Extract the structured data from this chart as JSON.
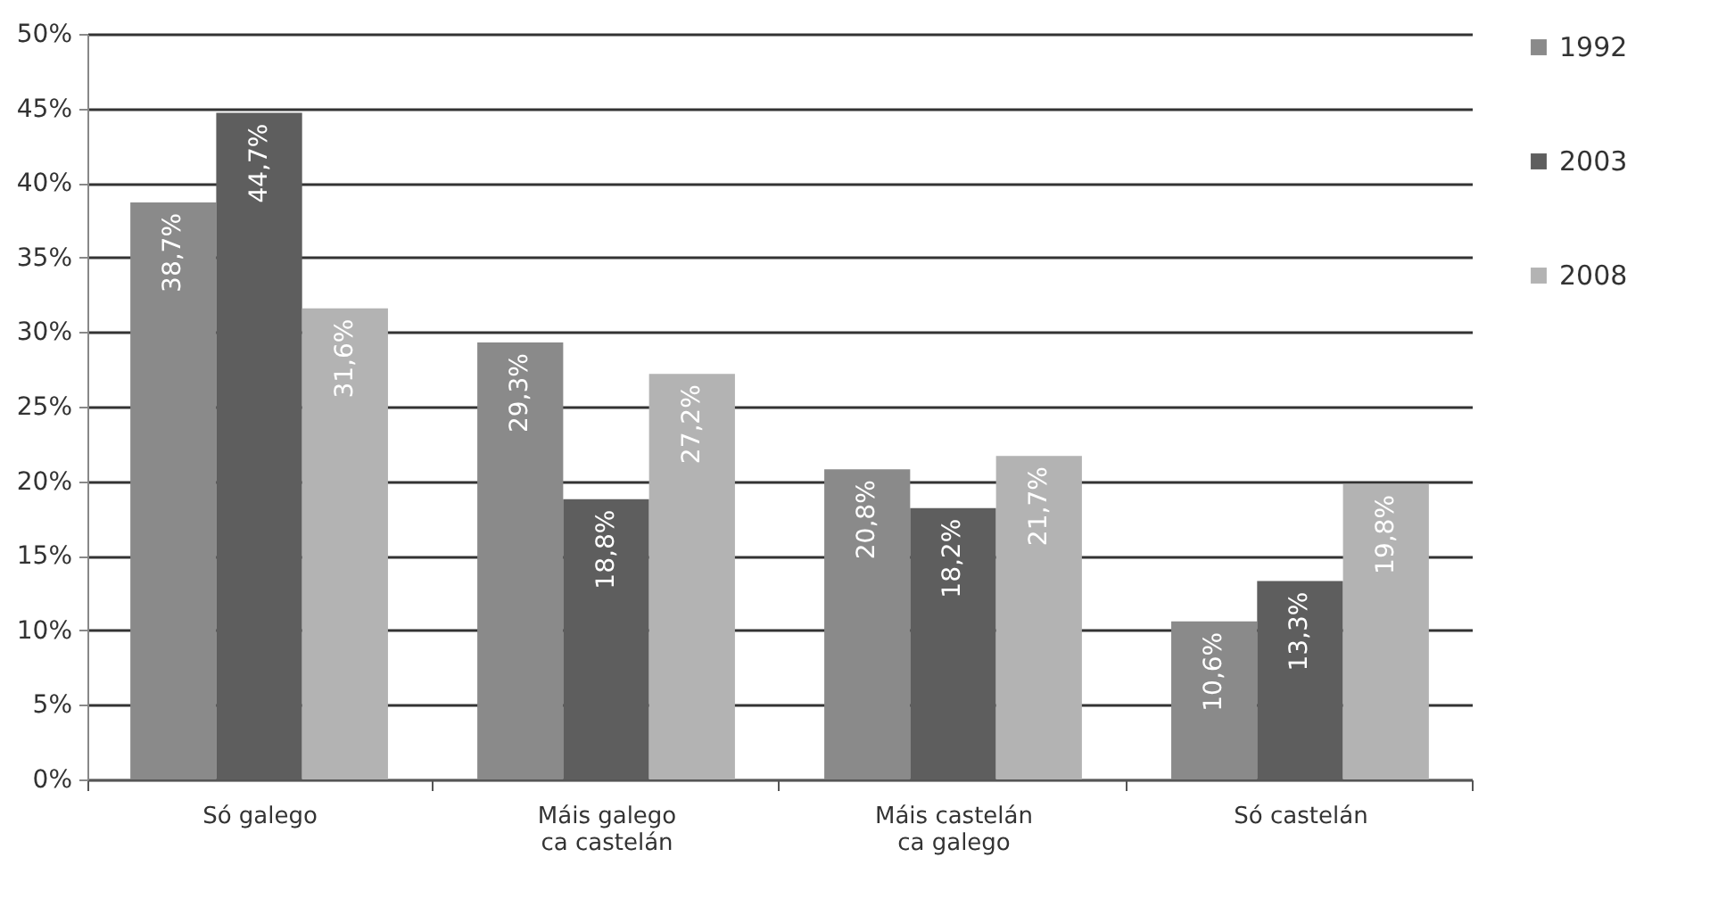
{
  "chart_data": {
    "type": "bar",
    "categories": [
      "Só galego",
      "Máis galego ca castelán",
      "Máis castelán ca galego",
      "Só castelán"
    ],
    "series": [
      {
        "name": "1992",
        "color": "#8a8a8a",
        "values": [
          38.7,
          29.3,
          20.8,
          10.6
        ],
        "value_labels": [
          "38,7%",
          "29,3%",
          "20,8%",
          "10,6%"
        ]
      },
      {
        "name": "2003",
        "color": "#5e5e5e",
        "values": [
          44.7,
          18.8,
          18.2,
          13.3
        ],
        "value_labels": [
          "44,7%",
          "18,8%",
          "18,2%",
          "13,3%"
        ]
      },
      {
        "name": "2008",
        "color": "#b3b3b3",
        "values": [
          31.6,
          27.2,
          21.7,
          19.8
        ],
        "value_labels": [
          "31,6%",
          "27,2%",
          "21,7%",
          "19,8%"
        ]
      }
    ],
    "ylim": [
      0,
      50
    ],
    "yticks": [
      {
        "value": 0,
        "label": "0%"
      },
      {
        "value": 5,
        "label": "5%"
      },
      {
        "value": 10,
        "label": "10%"
      },
      {
        "value": 15,
        "label": "15%"
      },
      {
        "value": 20,
        "label": "20%"
      },
      {
        "value": 25,
        "label": "25%"
      },
      {
        "value": 30,
        "label": "30%"
      },
      {
        "value": 35,
        "label": "35%"
      },
      {
        "value": 40,
        "label": "40%"
      },
      {
        "value": 45,
        "label": "45%"
      },
      {
        "value": 50,
        "label": "50%"
      }
    ],
    "grid": "y",
    "legend": "right"
  }
}
